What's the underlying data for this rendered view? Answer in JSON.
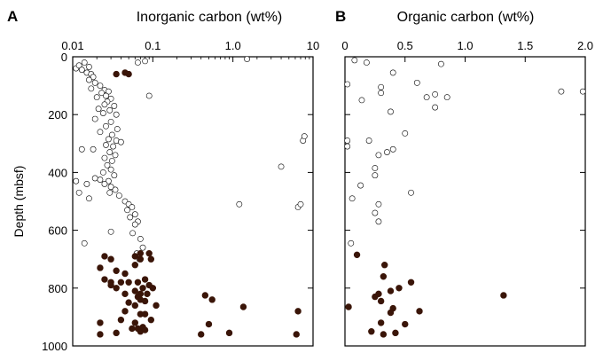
{
  "chart_data": [
    {
      "type": "scatter",
      "panel_label": "A",
      "title": "Inorganic carbon (wt%)",
      "xlabel": "",
      "ylabel": "Depth (mbsf)",
      "x_scale": "log",
      "xlim": [
        0.01,
        10
      ],
      "ylim": [
        0,
        1000
      ],
      "y_inverted": true,
      "x_axis_position": "top",
      "x_ticks": [
        0.01,
        0.1,
        1,
        10
      ],
      "x_tick_labels": [
        "0.01",
        "0.1",
        "1.0",
        "10"
      ],
      "y_ticks": [
        0,
        200,
        400,
        600,
        800,
        1000
      ],
      "y_tick_labels": [
        "0",
        "200",
        "400",
        "600",
        "800",
        "1000"
      ],
      "grid": false,
      "series": [
        {
          "marker": "open-circle",
          "color": "#000000",
          "points": [
            [
              0.011,
              40
            ],
            [
              0.012,
              30
            ],
            [
              0.013,
              45
            ],
            [
              0.014,
              20
            ],
            [
              0.016,
              35
            ],
            [
              0.015,
              55
            ],
            [
              0.017,
              60
            ],
            [
              0.018,
              70
            ],
            [
              0.016,
              80
            ],
            [
              0.019,
              90
            ],
            [
              0.022,
              100
            ],
            [
              0.017,
              110
            ],
            [
              0.025,
              115
            ],
            [
              0.023,
              125
            ],
            [
              0.028,
              120
            ],
            [
              0.026,
              135
            ],
            [
              0.02,
              140
            ],
            [
              0.03,
              145
            ],
            [
              0.027,
              155
            ],
            [
              0.025,
              165
            ],
            [
              0.033,
              170
            ],
            [
              0.021,
              180
            ],
            [
              0.029,
              185
            ],
            [
              0.024,
              195
            ],
            [
              0.035,
              200
            ],
            [
              0.019,
              215
            ],
            [
              0.03,
              225
            ],
            [
              0.026,
              240
            ],
            [
              0.036,
              250
            ],
            [
              0.022,
              260
            ],
            [
              0.031,
              270
            ],
            [
              0.028,
              285
            ],
            [
              0.035,
              290
            ],
            [
              0.04,
              295
            ],
            [
              0.026,
              305
            ],
            [
              0.032,
              310
            ],
            [
              0.013,
              320
            ],
            [
              0.018,
              320
            ],
            [
              0.029,
              330
            ],
            [
              0.034,
              340
            ],
            [
              0.025,
              350
            ],
            [
              0.031,
              360
            ],
            [
              0.027,
              375
            ],
            [
              0.03,
              390
            ],
            [
              0.024,
              400
            ],
            [
              0.033,
              410
            ],
            [
              0.019,
              420
            ],
            [
              0.022,
              425
            ],
            [
              0.028,
              430
            ],
            [
              0.011,
              430
            ],
            [
              0.015,
              440
            ],
            [
              0.025,
              440
            ],
            [
              0.03,
              450
            ],
            [
              0.034,
              460
            ],
            [
              0.029,
              470
            ],
            [
              0.012,
              470
            ],
            [
              0.038,
              480
            ],
            [
              0.016,
              490
            ],
            [
              0.045,
              500
            ],
            [
              0.05,
              510
            ],
            [
              0.055,
              520
            ],
            [
              0.048,
              530
            ],
            [
              0.06,
              545
            ],
            [
              0.052,
              555
            ],
            [
              0.065,
              570
            ],
            [
              0.06,
              580
            ],
            [
              0.03,
              605
            ],
            [
              0.056,
              610
            ],
            [
              0.07,
              630
            ],
            [
              0.014,
              645
            ],
            [
              0.075,
              660
            ],
            [
              0.063,
              680
            ],
            [
              0.068,
              700
            ],
            [
              0.08,
              15
            ],
            [
              0.065,
              20
            ],
            [
              0.09,
              135
            ],
            [
              1.5,
              8
            ],
            [
              4.0,
              380
            ],
            [
              1.2,
              510
            ],
            [
              6.5,
              520
            ],
            [
              7.0,
              510
            ],
            [
              7.5,
              290
            ],
            [
              7.8,
              275
            ]
          ]
        },
        {
          "marker": "filled-circle",
          "color": "#3a1508",
          "points": [
            [
              0.035,
              60
            ],
            [
              0.045,
              55
            ],
            [
              0.05,
              60
            ],
            [
              0.022,
              730
            ],
            [
              0.025,
              690
            ],
            [
              0.03,
              700
            ],
            [
              0.035,
              740
            ],
            [
              0.06,
              690
            ],
            [
              0.07,
              680
            ],
            [
              0.07,
              700
            ],
            [
              0.06,
              720
            ],
            [
              0.09,
              680
            ],
            [
              0.095,
              700
            ],
            [
              0.045,
              750
            ],
            [
              0.03,
              780
            ],
            [
              0.025,
              770
            ],
            [
              0.03,
              790
            ],
            [
              0.04,
              780
            ],
            [
              0.035,
              800
            ],
            [
              0.05,
              780
            ],
            [
              0.065,
              780
            ],
            [
              0.08,
              770
            ],
            [
              0.09,
              790
            ],
            [
              0.1,
              800
            ],
            [
              0.075,
              800
            ],
            [
              0.06,
              810
            ],
            [
              0.045,
              820
            ],
            [
              0.07,
              820
            ],
            [
              0.085,
              820
            ],
            [
              0.065,
              830
            ],
            [
              0.07,
              840
            ],
            [
              0.08,
              845
            ],
            [
              0.05,
              850
            ],
            [
              0.06,
              860
            ],
            [
              0.11,
              860
            ],
            [
              0.045,
              880
            ],
            [
              0.07,
              890
            ],
            [
              0.08,
              890
            ],
            [
              0.04,
              910
            ],
            [
              0.06,
              920
            ],
            [
              0.095,
              910
            ],
            [
              0.022,
              920
            ],
            [
              0.055,
              940
            ],
            [
              0.065,
              940
            ],
            [
              0.07,
              950
            ],
            [
              0.075,
              935
            ],
            [
              0.08,
              945
            ],
            [
              0.022,
              960
            ],
            [
              0.035,
              955
            ],
            [
              0.45,
              825
            ],
            [
              0.55,
              840
            ],
            [
              1.35,
              865
            ],
            [
              0.5,
              925
            ],
            [
              0.4,
              960
            ],
            [
              0.9,
              955
            ],
            [
              6.5,
              880
            ],
            [
              6.2,
              960
            ]
          ]
        }
      ]
    },
    {
      "type": "scatter",
      "panel_label": "B",
      "title": "Organic carbon (wt%)",
      "xlabel": "",
      "ylabel": "",
      "x_scale": "linear",
      "xlim": [
        0,
        2
      ],
      "ylim": [
        0,
        1000
      ],
      "y_inverted": true,
      "x_axis_position": "top",
      "x_ticks": [
        0,
        0.5,
        1,
        1.5,
        2
      ],
      "x_tick_labels": [
        "0",
        "0.5",
        "1.0",
        "1.5",
        "2.0"
      ],
      "y_ticks": [
        0,
        200,
        400,
        600,
        800,
        1000
      ],
      "y_tick_labels": [
        "",
        "",
        "",
        "",
        "",
        ""
      ],
      "grid": false,
      "series": [
        {
          "marker": "open-circle",
          "color": "#000000",
          "points": [
            [
              0.08,
              12
            ],
            [
              0.18,
              20
            ],
            [
              0.8,
              25
            ],
            [
              0.02,
              95
            ],
            [
              0.4,
              55
            ],
            [
              0.6,
              90
            ],
            [
              0.3,
              105
            ],
            [
              0.3,
              125
            ],
            [
              0.14,
              150
            ],
            [
              0.75,
              130
            ],
            [
              0.85,
              140
            ],
            [
              0.68,
              140
            ],
            [
              0.75,
              175
            ],
            [
              0.38,
              190
            ],
            [
              1.8,
              120
            ],
            [
              1.98,
              120
            ],
            [
              0.5,
              265
            ],
            [
              0.2,
              290
            ],
            [
              0.02,
              290
            ],
            [
              0.02,
              310
            ],
            [
              0.4,
              320
            ],
            [
              0.35,
              330
            ],
            [
              0.28,
              340
            ],
            [
              0.25,
              385
            ],
            [
              0.25,
              410
            ],
            [
              0.13,
              445
            ],
            [
              0.55,
              470
            ],
            [
              0.06,
              490
            ],
            [
              0.28,
              510
            ],
            [
              0.25,
              540
            ],
            [
              0.28,
              570
            ],
            [
              0.05,
              645
            ]
          ]
        },
        {
          "marker": "filled-circle",
          "color": "#3a1508",
          "points": [
            [
              0.1,
              685
            ],
            [
              0.33,
              720
            ],
            [
              0.32,
              760
            ],
            [
              0.55,
              780
            ],
            [
              0.45,
              800
            ],
            [
              0.38,
              810
            ],
            [
              0.28,
              820
            ],
            [
              0.25,
              830
            ],
            [
              0.3,
              845
            ],
            [
              1.32,
              825
            ],
            [
              0.03,
              865
            ],
            [
              0.4,
              870
            ],
            [
              0.62,
              880
            ],
            [
              0.38,
              885
            ],
            [
              0.3,
              920
            ],
            [
              0.5,
              925
            ],
            [
              0.22,
              950
            ],
            [
              0.42,
              955
            ],
            [
              0.32,
              960
            ]
          ]
        }
      ]
    }
  ]
}
